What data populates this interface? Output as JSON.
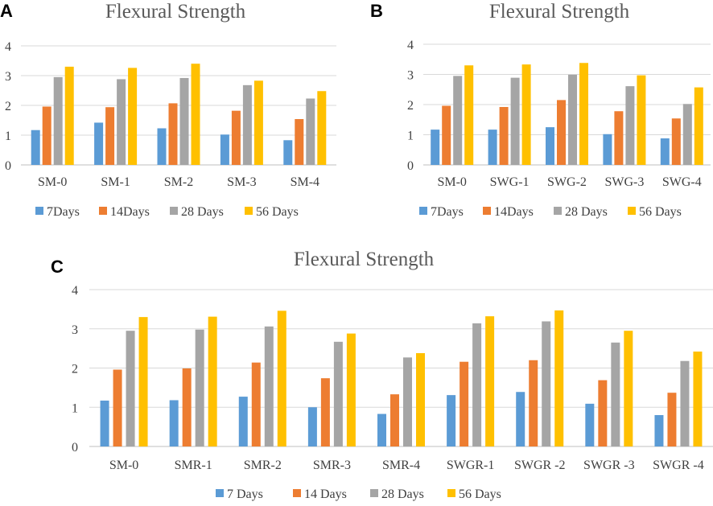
{
  "colors": [
    "#5b9bd5",
    "#ed7d31",
    "#a5a5a5",
    "#ffc000"
  ],
  "chart_data": [
    {
      "panel": "A",
      "type": "bar",
      "title": "Flexural Strength",
      "ylim": [
        0,
        4
      ],
      "yticks": [
        "0",
        "1",
        "2",
        "3",
        "4"
      ],
      "categories": [
        "SM-0",
        "SM-1",
        "SM-2",
        "SM-3",
        "SM-4"
      ],
      "series": [
        {
          "name": "7Days",
          "values": [
            1.17,
            1.42,
            1.23,
            1.02,
            0.83
          ]
        },
        {
          "name": "14Days",
          "values": [
            1.96,
            1.94,
            2.07,
            1.82,
            1.54
          ]
        },
        {
          "name": "28 Days",
          "values": [
            2.95,
            2.88,
            2.92,
            2.68,
            2.23
          ]
        },
        {
          "name": "56 Days",
          "values": [
            3.3,
            3.26,
            3.4,
            2.83,
            2.48
          ]
        }
      ],
      "legend": "bottom"
    },
    {
      "panel": "B",
      "type": "bar",
      "title": "Flexural Strength",
      "ylim": [
        0,
        4
      ],
      "yticks": [
        "0",
        "1",
        "2",
        "3",
        "4"
      ],
      "categories": [
        "SM-0",
        "SWG-1",
        "SWG-2",
        "SWG-3",
        "SWG-4"
      ],
      "series": [
        {
          "name": "7Days",
          "values": [
            1.17,
            1.17,
            1.25,
            1.02,
            0.88
          ]
        },
        {
          "name": "14Days",
          "values": [
            1.96,
            1.92,
            2.15,
            1.78,
            1.54
          ]
        },
        {
          "name": "28 Days",
          "values": [
            2.95,
            2.89,
            2.99,
            2.61,
            2.02
          ]
        },
        {
          "name": "56 Days",
          "values": [
            3.3,
            3.33,
            3.38,
            2.97,
            2.57
          ]
        }
      ],
      "legend": "bottom"
    },
    {
      "panel": "C",
      "type": "bar",
      "title": "Flexural Strength",
      "ylim": [
        0,
        4
      ],
      "yticks": [
        "0",
        "1",
        "2",
        "3",
        "4"
      ],
      "categories": [
        "SM-0",
        "SMR-1",
        "SMR-2",
        "SMR-3",
        "SMR-4",
        "SWGR-1",
        "SWGR -2",
        "SWGR -3",
        "SWGR -4"
      ],
      "series": [
        {
          "name": "7 Days",
          "values": [
            1.17,
            1.18,
            1.27,
            1.0,
            0.83,
            1.31,
            1.39,
            1.09,
            0.8
          ]
        },
        {
          "name": "14 Days",
          "values": [
            1.96,
            1.99,
            2.14,
            1.74,
            1.33,
            2.16,
            2.2,
            1.69,
            1.37
          ]
        },
        {
          "name": "28 Days",
          "values": [
            2.95,
            2.98,
            3.06,
            2.67,
            2.27,
            3.14,
            3.19,
            2.65,
            2.18
          ]
        },
        {
          "name": "56 Days",
          "values": [
            3.3,
            3.31,
            3.46,
            2.88,
            2.38,
            3.32,
            3.47,
            2.95,
            2.42
          ]
        }
      ],
      "legend": "bottom"
    }
  ]
}
